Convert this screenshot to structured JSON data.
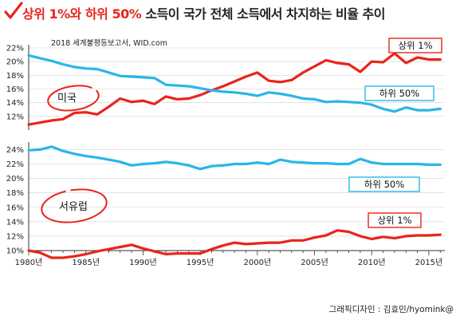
{
  "title": {
    "part1": "상위 1%와 하위 50%",
    "part2": " 소득이 국가 전체 소득에서 차지하는 비율 추이"
  },
  "source": "2018 세계불평등보고서, WID.com",
  "credit": "그래픽디자인 : 김효민/hyomink@",
  "colors": {
    "red": "#e8251b",
    "blue": "#29b6e8",
    "grid": "#d0d0d0"
  },
  "chart_data": [
    {
      "type": "line",
      "region": "미국",
      "ylim": [
        10,
        22
      ],
      "yticks": [
        "12%",
        "14%",
        "16%",
        "18%",
        "20%",
        "22%"
      ],
      "yticks_values": [
        12,
        14,
        16,
        18,
        20,
        22
      ],
      "x": [
        1980,
        1981,
        1982,
        1983,
        1984,
        1985,
        1986,
        1987,
        1988,
        1989,
        1990,
        1991,
        1992,
        1993,
        1994,
        1995,
        1996,
        1997,
        1998,
        1999,
        2000,
        2001,
        2002,
        2003,
        2004,
        2005,
        2006,
        2007,
        2008,
        2009,
        2010,
        2011,
        2012,
        2013,
        2014,
        2015,
        2016
      ],
      "series": [
        {
          "name": "상위 1%",
          "color": "#e8251b",
          "values": [
            10.8,
            11.1,
            11.4,
            11.6,
            12.5,
            12.6,
            12.3,
            13.4,
            14.6,
            14.1,
            14.3,
            13.8,
            14.9,
            14.5,
            14.6,
            15.1,
            15.8,
            16.4,
            17.1,
            17.8,
            18.4,
            17.2,
            17.0,
            17.3,
            18.4,
            19.3,
            20.2,
            19.8,
            19.6,
            18.5,
            20.0,
            19.9,
            21.2,
            19.8,
            20.6,
            20.3,
            20.3
          ]
        },
        {
          "name": "하위 50%",
          "color": "#29b6e8",
          "values": [
            20.9,
            20.5,
            20.1,
            19.6,
            19.2,
            19.0,
            18.9,
            18.4,
            17.9,
            17.8,
            17.7,
            17.6,
            16.6,
            16.5,
            16.4,
            16.1,
            15.8,
            15.6,
            15.5,
            15.3,
            15.0,
            15.5,
            15.3,
            15.0,
            14.6,
            14.5,
            14.1,
            14.2,
            14.1,
            14.0,
            13.7,
            13.1,
            12.7,
            13.3,
            12.9,
            12.9,
            13.1
          ]
        }
      ]
    },
    {
      "type": "line",
      "region": "서유럽",
      "ylim": [
        10,
        24.6
      ],
      "yticks": [
        "10%",
        "12%",
        "14%",
        "16%",
        "18%",
        "20%",
        "22%",
        "24%"
      ],
      "yticks_values": [
        10,
        12,
        14,
        16,
        18,
        20,
        22,
        24
      ],
      "x": [
        1980,
        1981,
        1982,
        1983,
        1984,
        1985,
        1986,
        1987,
        1988,
        1989,
        1990,
        1991,
        1992,
        1993,
        1994,
        1995,
        1996,
        1997,
        1998,
        1999,
        2000,
        2001,
        2002,
        2003,
        2004,
        2005,
        2006,
        2007,
        2008,
        2009,
        2010,
        2011,
        2012,
        2013,
        2014,
        2015,
        2016
      ],
      "series": [
        {
          "name": "상위 1%",
          "color": "#e8251b",
          "values": [
            10.0,
            9.7,
            9.0,
            9.0,
            9.2,
            9.5,
            9.9,
            10.2,
            10.5,
            10.8,
            10.3,
            9.9,
            9.5,
            9.6,
            9.6,
            9.6,
            10.2,
            10.7,
            11.1,
            10.9,
            11.0,
            11.1,
            11.1,
            11.4,
            11.4,
            11.8,
            12.1,
            12.8,
            12.6,
            12.0,
            11.6,
            11.9,
            11.7,
            12.0,
            12.1,
            12.1,
            12.2
          ]
        },
        {
          "name": "하위 50%",
          "color": "#29b6e8",
          "values": [
            23.9,
            24.0,
            24.4,
            23.8,
            23.4,
            23.1,
            22.9,
            22.6,
            22.3,
            21.8,
            22.0,
            22.1,
            22.3,
            22.1,
            21.8,
            21.3,
            21.7,
            21.8,
            22.0,
            22.0,
            22.2,
            22.0,
            22.6,
            22.3,
            22.2,
            22.1,
            22.1,
            22.0,
            22.0,
            22.7,
            22.2,
            22.0,
            22.0,
            22.0,
            22.0,
            21.9,
            21.9
          ]
        }
      ]
    }
  ],
  "xticks": [
    "1980년",
    "1985년",
    "1990년",
    "1995년",
    "2000년",
    "2005년",
    "2010년",
    "2015년"
  ],
  "xticks_values": [
    1980,
    1985,
    1990,
    1995,
    2000,
    2005,
    2010,
    2015
  ]
}
